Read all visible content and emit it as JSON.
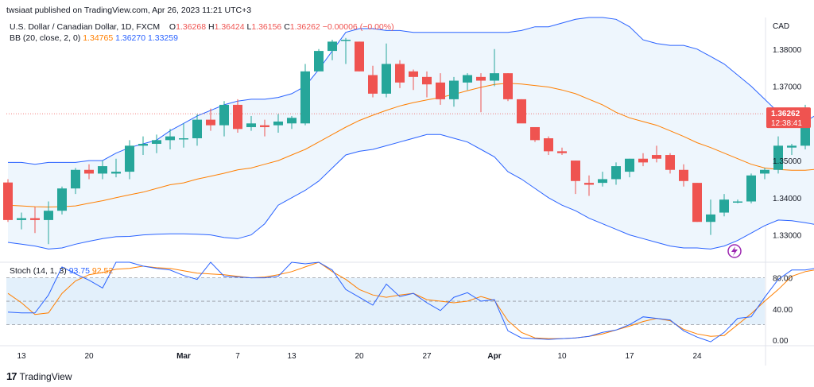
{
  "header": {
    "published": "twsiaat published on TradingView.com, Apr 26, 2023 11:21 UTC+3",
    "symbol": "U.S. Dollar / Canadian Dollar, 1D, FXCM",
    "o_label": "O",
    "o_value": "1.36268",
    "h_label": "H",
    "h_value": "1.36424",
    "l_label": "L",
    "l_value": "1.36156",
    "c_label": "C",
    "c_value": "1.36262",
    "change": "−0.00006 (−0.00%)"
  },
  "bb_legend": {
    "label": "BB (20, close, 2, 0)",
    "basis": "1.34765",
    "upper": "1.36270",
    "lower": "1.33259"
  },
  "stoch_legend": {
    "label": "Stoch (14, 1, 3)",
    "k": "93.75",
    "d": "92.52"
  },
  "price_axis": {
    "currency": "CAD",
    "ticks": [
      "1.38000",
      "1.37000",
      "1.36000",
      "1.35000",
      "1.34000",
      "1.33000"
    ],
    "ticks_values": [
      1.38,
      1.37,
      1.36,
      1.35,
      1.34,
      1.33
    ]
  },
  "price_badge": {
    "value": "1.36262",
    "countdown": "12:38:41"
  },
  "stoch_axis": {
    "ticks": [
      "80.00",
      "40.00",
      "0.00"
    ],
    "tick_values": [
      80,
      40,
      0
    ]
  },
  "time_axis": [
    {
      "label": "13",
      "bar": 1
    },
    {
      "label": "20",
      "bar": 6
    },
    {
      "label": "Mar",
      "bar": 13,
      "bold": true
    },
    {
      "label": "7",
      "bar": 17
    },
    {
      "label": "13",
      "bar": 21
    },
    {
      "label": "20",
      "bar": 26
    },
    {
      "label": "27",
      "bar": 31
    },
    {
      "label": "Apr",
      "bar": 36,
      "bold": true
    },
    {
      "label": "10",
      "bar": 41
    },
    {
      "label": "17",
      "bar": 46
    },
    {
      "label": "24",
      "bar": 51
    }
  ],
  "brand": {
    "text": "TradingView",
    "logo": "17"
  },
  "colors": {
    "up": "#26a69a",
    "down": "#ef5350",
    "bb_band": "#2962ff",
    "bb_basis": "#ff7f00",
    "stoch_k": "#2962ff",
    "stoch_d": "#ff7f00",
    "stoch_fill": "#e3f0fb",
    "bb_fill": "#eef6fd"
  },
  "icons": {
    "flash": "lightning-bolt-icon"
  },
  "chart_data": [
    {
      "type": "candlestick",
      "title": "U.S. Dollar / Canadian Dollar, 1D, FXCM",
      "ylabel": "CAD",
      "ylim": [
        1.3235,
        1.3885
      ],
      "candles": [
        [
          1.3441,
          1.345,
          1.3335,
          1.334
        ],
        [
          1.334,
          1.336,
          1.3315,
          1.3345
        ],
        [
          1.3345,
          1.3375,
          1.3305,
          1.334
        ],
        [
          1.334,
          1.339,
          1.3275,
          1.3365
        ],
        [
          1.3365,
          1.343,
          1.3355,
          1.3425
        ],
        [
          1.3425,
          1.348,
          1.341,
          1.3475
        ],
        [
          1.3475,
          1.349,
          1.345,
          1.3465
        ],
        [
          1.3465,
          1.35,
          1.345,
          1.3485
        ],
        [
          1.3465,
          1.3505,
          1.3455,
          1.347
        ],
        [
          1.347,
          1.3555,
          1.345,
          1.354
        ],
        [
          1.354,
          1.3565,
          1.3515,
          1.3545
        ],
        [
          1.3545,
          1.357,
          1.352,
          1.3555
        ],
        [
          1.3555,
          1.3585,
          1.353,
          1.3565
        ],
        [
          1.356,
          1.36,
          1.3535,
          1.356
        ],
        [
          1.356,
          1.3625,
          1.354,
          1.361
        ],
        [
          1.361,
          1.364,
          1.358,
          1.3595
        ],
        [
          1.3595,
          1.366,
          1.3565,
          1.365
        ],
        [
          1.365,
          1.3665,
          1.3575,
          1.3585
        ],
        [
          1.359,
          1.362,
          1.358,
          1.36
        ],
        [
          1.3595,
          1.361,
          1.3565,
          1.359
        ],
        [
          1.3595,
          1.3625,
          1.3575,
          1.3605
        ],
        [
          1.36,
          1.362,
          1.3585,
          1.3615
        ],
        [
          1.36,
          1.376,
          1.3595,
          1.374
        ],
        [
          1.374,
          1.38,
          1.3745,
          1.3795
        ],
        [
          1.3795,
          1.3825,
          1.377,
          1.382
        ],
        [
          1.3825,
          1.383,
          1.376,
          1.3825
        ],
        [
          1.382,
          1.382,
          1.374,
          1.374
        ],
        [
          1.373,
          1.3755,
          1.367,
          1.368
        ],
        [
          1.368,
          1.3815,
          1.367,
          1.376
        ],
        [
          1.376,
          1.377,
          1.3695,
          1.371
        ],
        [
          1.374,
          1.3745,
          1.369,
          1.3725
        ],
        [
          1.3725,
          1.374,
          1.367,
          1.3705
        ],
        [
          1.371,
          1.3735,
          1.365,
          1.3665
        ],
        [
          1.3665,
          1.3725,
          1.3645,
          1.3715
        ],
        [
          1.371,
          1.3735,
          1.369,
          1.373
        ],
        [
          1.3725,
          1.3735,
          1.363,
          1.3715
        ],
        [
          1.3715,
          1.38,
          1.37,
          1.3735
        ],
        [
          1.3735,
          1.3735,
          1.366,
          1.3665
        ],
        [
          1.3665,
          1.3665,
          1.3605,
          1.36
        ],
        [
          1.359,
          1.359,
          1.355,
          1.3555
        ],
        [
          1.356,
          1.3565,
          1.3515,
          1.3525
        ],
        [
          1.3525,
          1.3535,
          1.3515,
          1.352
        ],
        [
          1.35,
          1.35,
          1.341,
          1.3445
        ],
        [
          1.344,
          1.346,
          1.3405,
          1.3435
        ],
        [
          1.344,
          1.347,
          1.343,
          1.345
        ],
        [
          1.345,
          1.3495,
          1.3435,
          1.3485
        ],
        [
          1.347,
          1.3505,
          1.3455,
          1.3505
        ],
        [
          1.3505,
          1.352,
          1.3485,
          1.3495
        ],
        [
          1.3515,
          1.354,
          1.3495,
          1.3505
        ],
        [
          1.3515,
          1.352,
          1.3465,
          1.3475
        ],
        [
          1.3475,
          1.349,
          1.343,
          1.3445
        ],
        [
          1.344,
          1.344,
          1.3335,
          1.3335
        ],
        [
          1.3335,
          1.3395,
          1.33,
          1.3355
        ],
        [
          1.336,
          1.341,
          1.335,
          1.3395
        ],
        [
          1.339,
          1.3395,
          1.3385,
          1.339
        ],
        [
          1.339,
          1.3465,
          1.3385,
          1.346
        ],
        [
          1.3465,
          1.348,
          1.345,
          1.3475
        ],
        [
          1.3475,
          1.3565,
          1.3465,
          1.354
        ],
        [
          1.3535,
          1.3545,
          1.3515,
          1.354
        ],
        [
          1.354,
          1.365,
          1.353,
          1.363
        ],
        [
          1.3627,
          1.3642,
          1.3616,
          1.3626
        ]
      ],
      "bb_upper": [
        1.3495,
        1.3495,
        1.349,
        1.3495,
        1.3495,
        1.3495,
        1.35,
        1.35,
        1.352,
        1.3535,
        1.3545,
        1.3555,
        1.358,
        1.36,
        1.362,
        1.3635,
        1.365,
        1.366,
        1.3665,
        1.3665,
        1.367,
        1.368,
        1.37,
        1.3745,
        1.3795,
        1.3845,
        1.3855,
        1.3855,
        1.385,
        1.385,
        1.3845,
        1.3845,
        1.3845,
        1.3845,
        1.3845,
        1.3845,
        1.3845,
        1.3845,
        1.385,
        1.386,
        1.386,
        1.387,
        1.388,
        1.3885,
        1.3885,
        1.388,
        1.386,
        1.3825,
        1.3815,
        1.381,
        1.381,
        1.38,
        1.378,
        1.376,
        1.373,
        1.37,
        1.3665,
        1.363,
        1.36,
        1.3605,
        1.3627
      ],
      "bb_basis": [
        1.338,
        1.3378,
        1.3376,
        1.3375,
        1.3376,
        1.3378,
        1.3385,
        1.3392,
        1.34,
        1.3408,
        1.3415,
        1.3425,
        1.3435,
        1.344,
        1.345,
        1.3458,
        1.3466,
        1.3475,
        1.348,
        1.349,
        1.35,
        1.3515,
        1.353,
        1.355,
        1.357,
        1.359,
        1.3608,
        1.3622,
        1.3635,
        1.3647,
        1.3656,
        1.3663,
        1.367,
        1.3678,
        1.3688,
        1.3697,
        1.3705,
        1.3708,
        1.3706,
        1.3702,
        1.3698,
        1.369,
        1.368,
        1.3665,
        1.365,
        1.363,
        1.3615,
        1.3605,
        1.3595,
        1.358,
        1.3565,
        1.3548,
        1.3535,
        1.352,
        1.3505,
        1.349,
        1.348,
        1.3476,
        1.3474,
        1.3474,
        1.3477
      ],
      "bb_lower": [
        1.328,
        1.3275,
        1.327,
        1.3262,
        1.3265,
        1.3275,
        1.3283,
        1.329,
        1.3295,
        1.3296,
        1.33,
        1.3302,
        1.3303,
        1.3303,
        1.3302,
        1.33,
        1.3293,
        1.329,
        1.33,
        1.333,
        1.338,
        1.34,
        1.342,
        1.3445,
        1.348,
        1.3515,
        1.3525,
        1.353,
        1.354,
        1.355,
        1.356,
        1.357,
        1.357,
        1.356,
        1.355,
        1.353,
        1.351,
        1.347,
        1.345,
        1.3425,
        1.34,
        1.338,
        1.3365,
        1.3345,
        1.333,
        1.3315,
        1.33,
        1.329,
        1.328,
        1.327,
        1.3265,
        1.3265,
        1.3262,
        1.327,
        1.3285,
        1.3305,
        1.3325,
        1.334,
        1.3338,
        1.3333,
        1.3326
      ],
      "last_price_line": 1.3626
    },
    {
      "type": "line",
      "title": "Stoch (14, 1, 3)",
      "ylim": [
        -5,
        100
      ],
      "series": [
        {
          "name": "%K",
          "values": [
            36,
            35,
            35,
            58,
            94,
            85,
            77,
            67,
            100,
            100,
            95,
            92,
            90,
            83,
            78,
            100,
            82,
            81,
            80,
            80,
            82,
            100,
            98,
            100,
            90,
            65,
            55,
            45,
            72,
            56,
            60,
            48,
            38,
            55,
            61,
            50,
            52,
            12,
            3,
            2,
            1,
            2,
            3,
            5,
            10,
            13,
            20,
            30,
            28,
            26,
            12,
            4,
            -2,
            10,
            28,
            30,
            55,
            78,
            90,
            90,
            93,
            93
          ],
          "sparse": true
        },
        {
          "name": "%D",
          "values": [
            60,
            48,
            33,
            35,
            60,
            76,
            84,
            87,
            91,
            92,
            95,
            93,
            92,
            89,
            86,
            85,
            84,
            82,
            80,
            81,
            84,
            88,
            94,
            100,
            88,
            78,
            65,
            58,
            55,
            58,
            60,
            52,
            50,
            48,
            50,
            56,
            51,
            25,
            10,
            3,
            2,
            2,
            3,
            5,
            8,
            13,
            18,
            24,
            28,
            25,
            14,
            8,
            5,
            6,
            20,
            34,
            50,
            65,
            82,
            88,
            91,
            92
          ]
        }
      ],
      "ticks": [
        "80.00",
        "40.00",
        "0.00"
      ]
    }
  ]
}
